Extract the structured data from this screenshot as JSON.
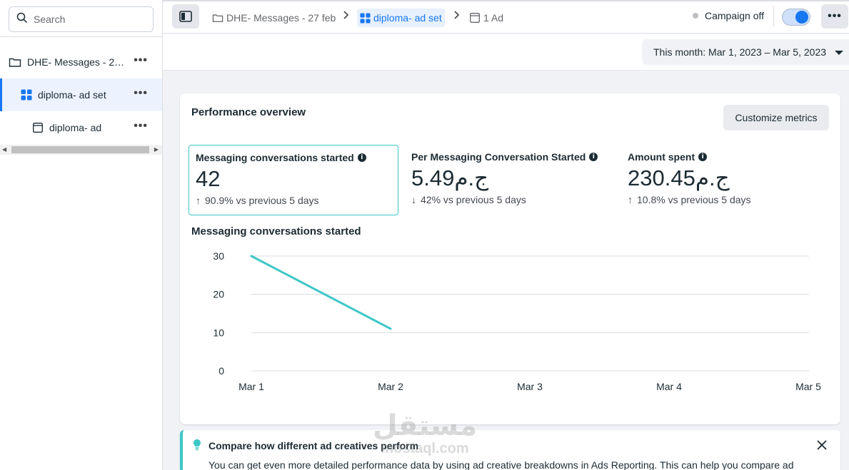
{
  "sidebar": {
    "search_placeholder": "Search",
    "items": [
      {
        "label": "DHE- Messages - 27...",
        "icon": "folder-icon",
        "more": "•••"
      },
      {
        "label": "diploma- ad set",
        "icon": "adset-grid-icon",
        "more": "•••"
      },
      {
        "label": "diploma- ad",
        "icon": "ad-icon",
        "more": "•••"
      }
    ]
  },
  "topbar": {
    "breadcrumbs": [
      {
        "label": "DHE- Messages - 27 feb",
        "icon": "folder-icon"
      },
      {
        "label": "diploma- ad set",
        "icon": "adset-grid-icon"
      },
      {
        "label": "1 Ad",
        "icon": "ad-icon"
      }
    ],
    "campaign_status": "Campaign off",
    "toggle_on": true,
    "more": "•••"
  },
  "date_range": "This month: Mar 1, 2023 – Mar 5, 2023",
  "overview": {
    "title": "Performance overview",
    "customize_label": "Customize metrics",
    "metrics": [
      {
        "name": "Messaging conversations started",
        "value": "42",
        "direction": "up",
        "change": "90.9% vs previous 5 days",
        "selected": true
      },
      {
        "name": "Per Messaging Conversation Started",
        "value": "5.49ج.م",
        "direction": "down",
        "change": "42% vs previous 5 days",
        "selected": false
      },
      {
        "name": "Amount spent",
        "value": "230.45ج.م",
        "direction": "up",
        "change": "10.8% vs previous 5 days",
        "selected": false
      }
    ]
  },
  "chart_data": {
    "type": "line",
    "title": "Messaging conversations started",
    "categories": [
      "Mar 1",
      "Mar 2",
      "Mar 3",
      "Mar 4",
      "Mar 5"
    ],
    "series": [
      {
        "values": [
          30,
          11,
          null,
          null,
          null
        ],
        "color": "#3dc7c7"
      }
    ],
    "y_ticks": [
      0,
      10,
      20,
      30
    ],
    "ylim": [
      0,
      30
    ],
    "grid": true
  },
  "tip": {
    "title": "Compare how different ad creatives perform",
    "body": "You can get even more detailed performance data by using ad creative breakdowns in Ads Reporting. This can help you compare ad"
  },
  "watermark": {
    "arabic": "مستقل",
    "latin": "mostaql.com"
  },
  "colors": {
    "accent": "#1877f2",
    "teal": "#3dc7c7"
  }
}
